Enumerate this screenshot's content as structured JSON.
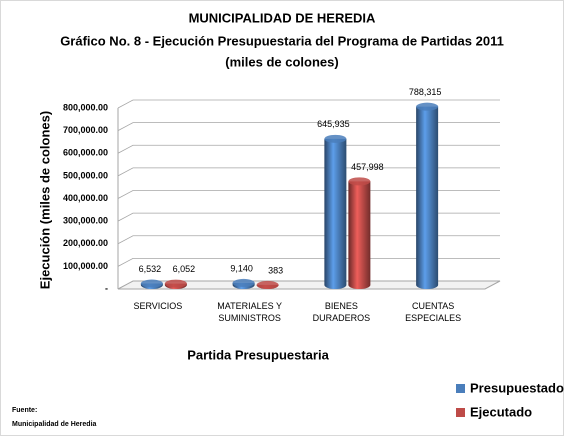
{
  "chart_data": {
    "type": "bar3d",
    "title": "MUNICIPALIDAD DE HEREDIA",
    "subtitle": [
      "Gráfico No. 8 - Ejecución Presupuestaria del Programa de Partidas 2011",
      "(miles de colones)"
    ],
    "x_label": "Partida Presupuestaria",
    "y_label": "Ejecución (miles de colones)",
    "categories": [
      "SERVICIOS",
      "MATERIALES Y SUMINISTROS",
      "BIENES DURADEROS",
      "CUENTAS ESPECIALES"
    ],
    "series": [
      {
        "name": "Presupuestado",
        "color": "#4a7ebb",
        "values": [
          6532,
          9140,
          645935,
          788315
        ],
        "value_labels": [
          "6,532",
          "9,140",
          "645,935",
          "788,315"
        ]
      },
      {
        "name": "Ejecutado",
        "color": "#be4b48",
        "values": [
          6052,
          383,
          457998,
          null
        ],
        "value_labels": [
          "6,052",
          "383",
          "457,998",
          null
        ]
      }
    ],
    "ylim": [
      0,
      800000
    ],
    "yticks": [
      {
        "value": 0,
        "label": "-"
      },
      {
        "value": 100000,
        "label": "100,000.00"
      },
      {
        "value": 200000,
        "label": "200,000.00"
      },
      {
        "value": 300000,
        "label": "300,000.00"
      },
      {
        "value": 400000,
        "label": "400,000.00"
      },
      {
        "value": 500000,
        "label": "500,000.00"
      },
      {
        "value": 600000,
        "label": "600,000.00"
      },
      {
        "value": 700000,
        "label": "700,000.00"
      },
      {
        "value": 800000,
        "label": "800,000.00"
      }
    ],
    "grid": true,
    "legend": "bottom-right",
    "source": [
      "Fuente:",
      "Municipalidad de Heredia"
    ]
  }
}
